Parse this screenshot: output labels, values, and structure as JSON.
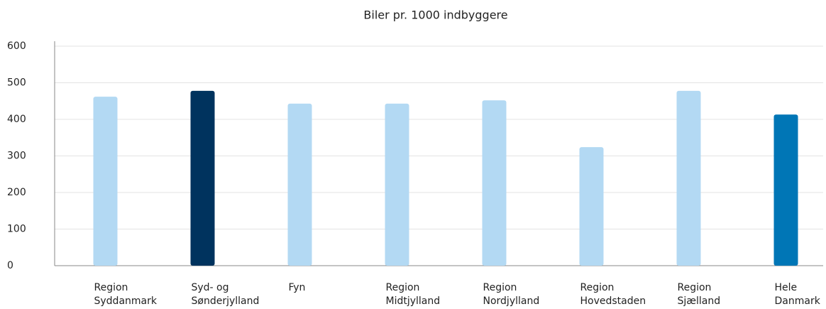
{
  "chart_data": {
    "type": "bar",
    "title": "Biler pr. 1000 indbyggere",
    "categories": [
      [
        "Region",
        "Syddanmark"
      ],
      [
        "Syd- og",
        "Sønderjylland"
      ],
      [
        "Fyn"
      ],
      [
        "Region",
        "Midtjylland"
      ],
      [
        "Region",
        "Nordjylland"
      ],
      [
        "Region",
        "Hovedstaden"
      ],
      [
        "Region",
        "Sjælland"
      ],
      [
        "Hele",
        "Danmark"
      ]
    ],
    "values": [
      462,
      478,
      443,
      443,
      452,
      324,
      478,
      413
    ],
    "colors": [
      "#b3d9f3",
      "#00335e",
      "#b3d9f3",
      "#b3d9f3",
      "#b3d9f3",
      "#b3d9f3",
      "#b3d9f3",
      "#0076b6"
    ],
    "ylim": [
      0,
      600
    ],
    "yticks": [
      0,
      100,
      200,
      300,
      400,
      500,
      600
    ],
    "grid": true
  }
}
